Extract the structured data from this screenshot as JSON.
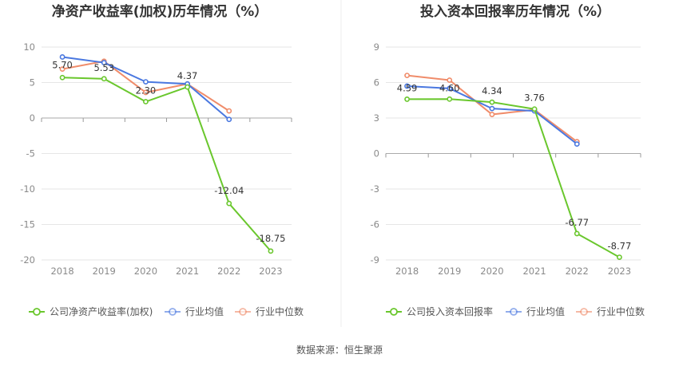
{
  "source": "数据来源：恒生聚源",
  "colors": {
    "company": "#6ac72d",
    "avg": "#4a78e0",
    "median": "#f08c6a",
    "grid": "#e6e6e6",
    "axis": "#666666"
  },
  "chart_data": [
    {
      "type": "line",
      "title": "净资产收益率(加权)历年情况（%）",
      "categories": [
        "2018",
        "2019",
        "2020",
        "2021",
        "2022",
        "2023"
      ],
      "ylim": [
        -20,
        10
      ],
      "yticks": [
        10,
        5,
        0,
        -5,
        -10,
        -15,
        -20
      ],
      "grid": true,
      "legend_position": "bottom",
      "series": [
        {
          "name": "公司净资产收益率(加权)",
          "color": "#6ac72d",
          "values": [
            5.7,
            5.53,
            2.3,
            4.37,
            -12.04,
            -18.75
          ],
          "labels": [
            "5.70",
            "5.53",
            "2.30",
            "4.37",
            "-12.04",
            "-18.75"
          ]
        },
        {
          "name": "行业均值",
          "color": "#4a78e0",
          "values": [
            8.6,
            7.8,
            5.1,
            4.8,
            -0.2,
            null
          ]
        },
        {
          "name": "行业中位数",
          "color": "#f08c6a",
          "values": [
            6.9,
            8.0,
            3.6,
            4.8,
            1.0,
            null
          ]
        }
      ]
    },
    {
      "type": "line",
      "title": "投入资本回报率历年情况（%）",
      "categories": [
        "2018",
        "2019",
        "2020",
        "2021",
        "2022",
        "2023"
      ],
      "ylim": [
        -9,
        9
      ],
      "yticks": [
        9,
        6,
        3,
        0,
        -3,
        -6,
        -9
      ],
      "grid": true,
      "legend_position": "bottom",
      "series": [
        {
          "name": "公司投入资本回报率",
          "color": "#6ac72d",
          "values": [
            4.59,
            4.6,
            4.34,
            3.76,
            -6.77,
            -8.77
          ],
          "labels": [
            "4.59",
            "4.60",
            "4.34",
            "3.76",
            "-6.77",
            "-8.77"
          ]
        },
        {
          "name": "行业均值",
          "color": "#4a78e0",
          "values": [
            5.7,
            5.5,
            3.8,
            3.6,
            0.8,
            null
          ]
        },
        {
          "name": "行业中位数",
          "color": "#f08c6a",
          "values": [
            6.6,
            6.2,
            3.3,
            3.7,
            1.0,
            null
          ]
        }
      ]
    }
  ]
}
